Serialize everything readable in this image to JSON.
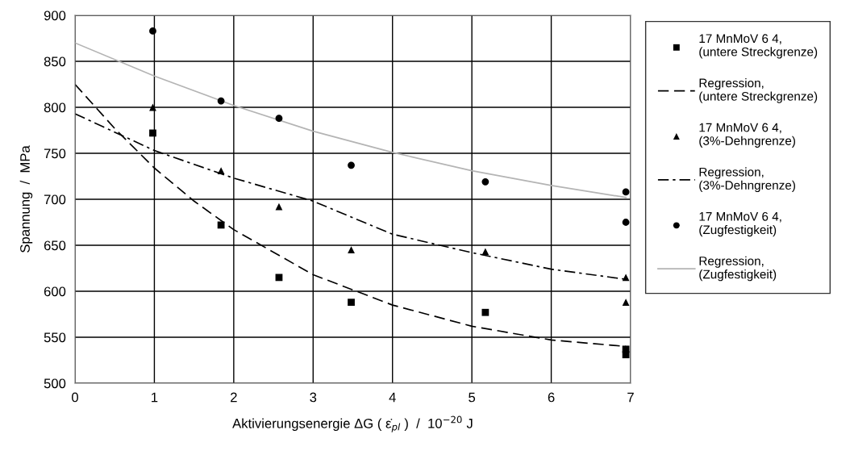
{
  "chart_data": {
    "type": "scatter",
    "xlabel": "Aktivierungsenergie ΔG ( ε̇$_{pl}$ )  /  10$^{−20}$ J",
    "ylabel": "Spannung  /  MPa",
    "xlim": [
      0,
      7
    ],
    "xticks": [
      0,
      1,
      2,
      3,
      4,
      5,
      6,
      7
    ],
    "ylim": [
      500,
      900
    ],
    "yticks": [
      500,
      550,
      600,
      650,
      700,
      750,
      800,
      850,
      900
    ],
    "grid": true,
    "legend": "right",
    "series": [
      {
        "name": "17 MnMoV 6 4,\n(untere Streckgrenze)",
        "marker": "square",
        "color": "#000000",
        "x": [
          0.98,
          1.84,
          2.57,
          3.48,
          5.17,
          6.94,
          6.94
        ],
        "values": [
          772,
          672,
          615,
          588,
          577,
          537,
          531
        ]
      },
      {
        "name": "Regression,\n(untere Streckgrenze)",
        "type": "line",
        "marker": "none",
        "line_style": "dashed",
        "color": "#000000",
        "x": [
          0,
          0.5,
          1,
          1.5,
          2,
          3,
          4,
          5,
          6,
          6.94
        ],
        "values": [
          825,
          777,
          734,
          698,
          667,
          618,
          585,
          562,
          547,
          540
        ]
      },
      {
        "name": "17 MnMoV 6 4,\n(3%-Dehngrenze)",
        "marker": "triangle",
        "color": "#000000",
        "x": [
          0.98,
          1.84,
          2.57,
          3.48,
          5.17,
          6.94,
          6.94
        ],
        "values": [
          800,
          731,
          692,
          645,
          643,
          615,
          588
        ]
      },
      {
        "name": "Regression,\n(3%-Dehngrenze)",
        "type": "line",
        "marker": "none",
        "line_style": "dashdot",
        "color": "#000000",
        "x": [
          0,
          1,
          2,
          3,
          4,
          5,
          6,
          6.94
        ],
        "values": [
          793,
          753,
          723,
          698,
          662,
          642,
          624,
          613
        ]
      },
      {
        "name": "17 MnMoV 6 4,\n(Zugfestigkeit)",
        "marker": "circle",
        "color": "#000000",
        "x": [
          0.98,
          1.84,
          2.57,
          3.48,
          5.17,
          6.94,
          6.94
        ],
        "values": [
          883,
          807,
          788,
          737,
          719,
          708,
          675
        ]
      },
      {
        "name": "Regression,\n(Zugfestigkeit)",
        "type": "line",
        "marker": "none",
        "line_style": "solid",
        "color": "#b4b4b4",
        "x": [
          0,
          1,
          2,
          3,
          4,
          5,
          6,
          6.94
        ],
        "values": [
          870,
          834,
          802,
          774,
          751,
          731,
          715,
          702
        ]
      }
    ]
  }
}
